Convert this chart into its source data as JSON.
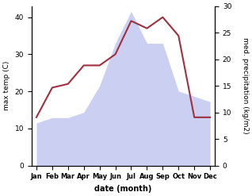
{
  "months": [
    "Jan",
    "Feb",
    "Mar",
    "Apr",
    "May",
    "Jun",
    "Jul",
    "Aug",
    "Sep",
    "Oct",
    "Nov",
    "Dec"
  ],
  "month_x": [
    0,
    1,
    2,
    3,
    4,
    5,
    6,
    7,
    8,
    9,
    10,
    11
  ],
  "temp_max": [
    13,
    21,
    22,
    27,
    27,
    30,
    39,
    37,
    40,
    35,
    13,
    13
  ],
  "precip": [
    8,
    9,
    9,
    10,
    15,
    23,
    29,
    23,
    23,
    14,
    13,
    12
  ],
  "left_ylim": [
    0,
    43
  ],
  "right_ylim": [
    0,
    30
  ],
  "left_yticks": [
    0,
    10,
    20,
    30,
    40
  ],
  "right_yticks": [
    0,
    5,
    10,
    15,
    20,
    25,
    30
  ],
  "xlabel": "date (month)",
  "ylabel_left": "max temp (C)",
  "ylabel_right": "med. precipitation (kg/m2)",
  "fill_color": "#b0b8ee",
  "fill_alpha": 0.65,
  "line_color": "#a03040",
  "line_width": 1.5,
  "bg_color": "#ffffff"
}
